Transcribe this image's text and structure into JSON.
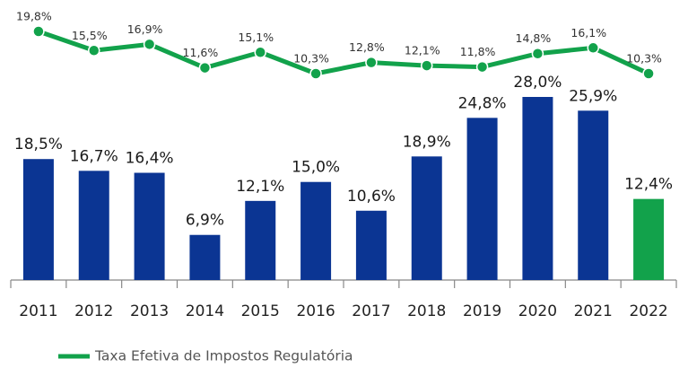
{
  "chart_data": {
    "type": "bar",
    "categories": [
      "2011",
      "2012",
      "2013",
      "2014",
      "2015",
      "2016",
      "2017",
      "2018",
      "2019",
      "2020",
      "2021",
      "2022"
    ],
    "series": [
      {
        "type": "bar",
        "colors": [
          "#0b3593",
          "#0b3593",
          "#0b3593",
          "#0b3593",
          "#0b3593",
          "#0b3593",
          "#0b3593",
          "#0b3593",
          "#0b3593",
          "#0b3593",
          "#0b3593",
          "#12a24b"
        ],
        "values": [
          18.5,
          16.7,
          16.4,
          6.9,
          12.1,
          15.0,
          10.6,
          18.9,
          24.8,
          28.0,
          25.9,
          12.4
        ],
        "value_labels": [
          "18,5%",
          "16,7%",
          "16,4%",
          "6,9%",
          "12,1%",
          "15,0%",
          "10,6%",
          "18,9%",
          "24,8%",
          "28,0%",
          "25,9%",
          "12,4%"
        ]
      },
      {
        "type": "line",
        "name": "Taxa Efetiva de Impostos Regulatória",
        "color": "#12a24b",
        "values": [
          19.8,
          15.5,
          16.9,
          11.6,
          15.1,
          10.3,
          12.8,
          12.1,
          11.8,
          14.8,
          16.1,
          10.3
        ],
        "value_labels": [
          "19,8%",
          "15,5%",
          "16,9%",
          "11,6%",
          "15,1%",
          "10,3%",
          "12,8%",
          "12,1%",
          "11,8%",
          "14,8%",
          "16,1%",
          "10,3%"
        ]
      }
    ],
    "legend": "bottom-left"
  }
}
